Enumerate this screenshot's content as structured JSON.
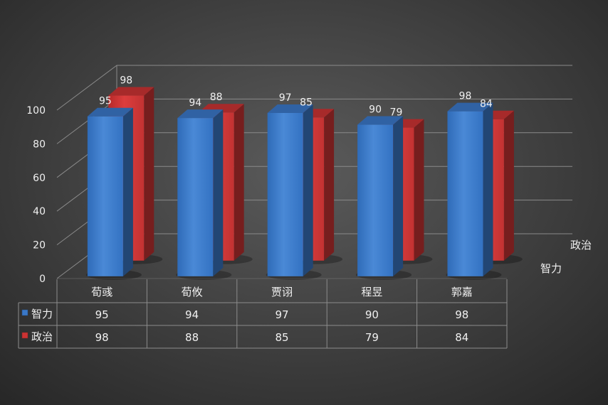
{
  "chart_data": {
    "type": "bar",
    "categories": [
      "荀彧",
      "荀攸",
      "贾诩",
      "程昱",
      "郭嘉"
    ],
    "series": [
      {
        "name": "智力",
        "values": [
          95,
          94,
          97,
          90,
          98
        ]
      },
      {
        "name": "政治",
        "values": [
          98,
          88,
          85,
          79,
          84
        ]
      }
    ],
    "ylim": [
      0,
      100
    ],
    "yticks": [
      0,
      20,
      40,
      60,
      80,
      100
    ],
    "grid": true,
    "data_labels": true,
    "data_table": true,
    "legend": "data-table",
    "colors": {
      "智力": "#3a78c8",
      "政治": "#cc3333"
    }
  }
}
